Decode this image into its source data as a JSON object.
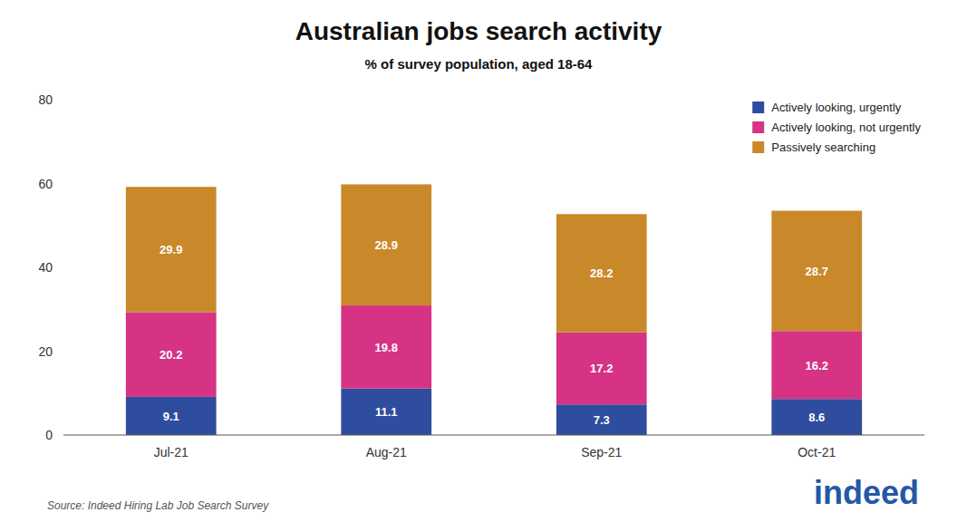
{
  "chart_data": {
    "type": "bar",
    "stacked": true,
    "title": "Australian jobs search activity",
    "subtitle": "% of survey population, aged 18-64",
    "annotations": [
      "Source: Indeed Hiring Lab Job Search Survey",
      "indeed"
    ],
    "categories": [
      "Jul-21",
      "Aug-21",
      "Sep-21",
      "Oct-21"
    ],
    "series": [
      {
        "name": "Actively looking, urgently",
        "values": [
          9.1,
          11.1,
          7.3,
          8.6
        ],
        "color": "#2e4d9e"
      },
      {
        "name": "Actively looking, not urgently",
        "values": [
          20.2,
          19.8,
          17.2,
          16.2
        ],
        "color": "#d63384"
      },
      {
        "name": "Passively searching",
        "values": [
          29.9,
          28.9,
          28.2,
          28.7
        ],
        "color": "#c9892a"
      }
    ],
    "ylim": [
      0,
      80
    ],
    "yticks": [
      0,
      20,
      40,
      60,
      80
    ],
    "grid": false,
    "legend": "upper right",
    "data_labels": true
  }
}
